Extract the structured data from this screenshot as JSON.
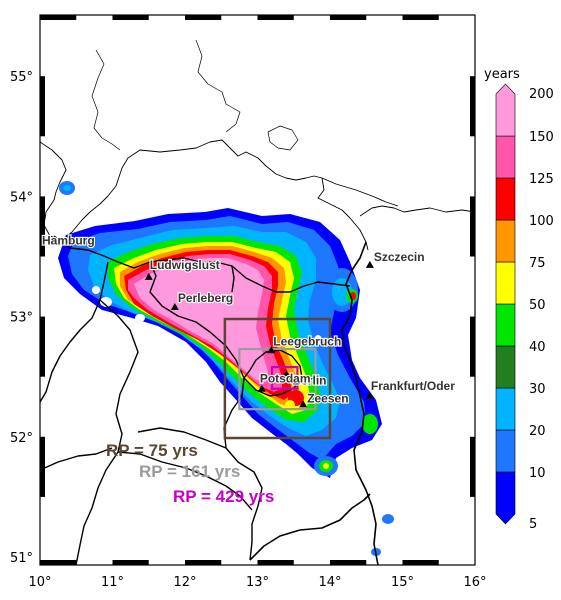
{
  "map": {
    "lon_ticks": [
      "10°",
      "11°",
      "12°",
      "13°",
      "14°",
      "15°",
      "16°"
    ],
    "lat_ticks": [
      "51°",
      "52°",
      "53°",
      "54°",
      "55°"
    ],
    "cities": [
      {
        "name": "Hamburg",
        "lon": 10.0,
        "lat": 53.55
      },
      {
        "name": "Ludwigslust",
        "lon": 11.5,
        "lat": 53.33
      },
      {
        "name": "Perleberg",
        "lon": 11.86,
        "lat": 53.08
      },
      {
        "name": "Leegebruch",
        "lon": 13.19,
        "lat": 52.72
      },
      {
        "name": "Berlin",
        "lon": 13.4,
        "lat": 52.52
      },
      {
        "name": "Potsdam",
        "lon": 13.06,
        "lat": 52.4
      },
      {
        "name": "Zeesen",
        "lon": 13.63,
        "lat": 52.27
      },
      {
        "name": "Szczecin",
        "lon": 14.55,
        "lat": 53.43
      },
      {
        "name": "Frankfurt/Oder",
        "lon": 14.55,
        "lat": 52.34
      }
    ],
    "return_periods": [
      {
        "label": "RP = 75 yrs",
        "color": "#5a4632",
        "lon_min": 12.55,
        "lon_max": 14.0,
        "lat_min": 51.99,
        "lat_max": 52.98
      },
      {
        "label": "RP = 161 yrs",
        "color": "#9b9b9b",
        "lon_min": 12.75,
        "lon_max": 13.8,
        "lat_min": 52.23,
        "lat_max": 52.73
      },
      {
        "label": "RP = 429 yrs",
        "color": "#c800c8",
        "lon_min": 13.2,
        "lon_max": 13.55,
        "lat_min": 52.4,
        "lat_max": 52.58
      }
    ]
  },
  "colorbar": {
    "title": "years",
    "levels": [
      "5",
      "10",
      "20",
      "30",
      "40",
      "50",
      "75",
      "100",
      "125",
      "150",
      "200"
    ],
    "colors": [
      "#0000ff",
      "#1e78ff",
      "#00b4ff",
      "#208020",
      "#00e600",
      "#ffff00",
      "#ff9600",
      "#ff0000",
      "#ff55aa",
      "#ff99dd"
    ]
  }
}
